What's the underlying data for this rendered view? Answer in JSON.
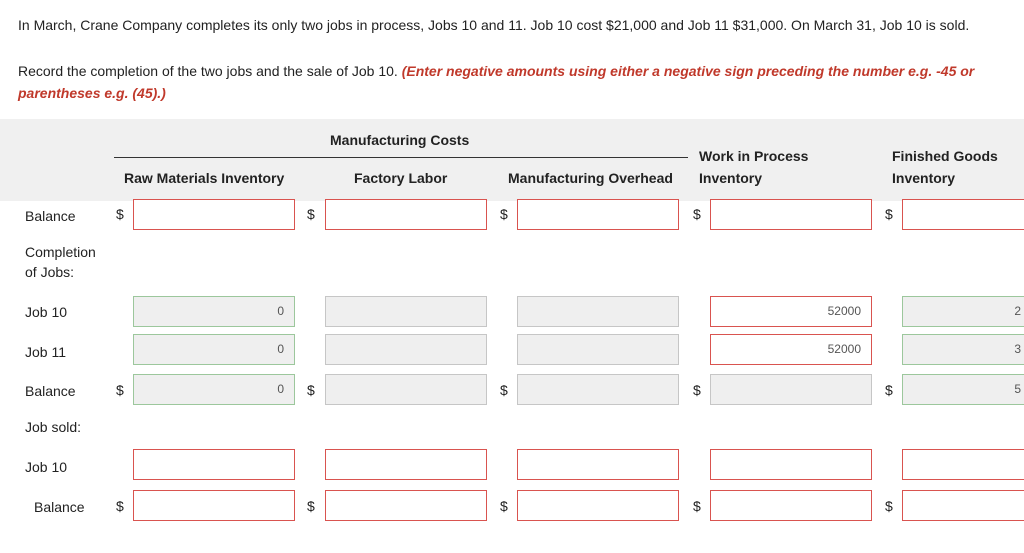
{
  "problem": {
    "statement": "In March, Crane Company completes its only two jobs in process, Jobs 10 and 11. Job 10 cost $21,000 and Job 11 $31,000. On March 31, Job 10 is sold.",
    "instruction": "Record the completion of the two jobs and the sale of Job 10. ",
    "note": "(Enter negative amounts using either a negative sign preceding the number e.g. -45 or parentheses e.g. (45).)"
  },
  "table": {
    "group_header": "Manufacturing Costs",
    "columns": {
      "raw_materials": "Raw Materials Inventory",
      "factory_labor": "Factory Labor",
      "mfg_overhead": "Manufacturing Overhead",
      "wip_line1": "Work in Process",
      "wip_line2": "Inventory",
      "fg_line1": "Finished Goods",
      "fg_line2": "Inventory"
    },
    "currency": "$",
    "rows": {
      "balance1": "Balance",
      "completion_line1": "Completion",
      "completion_line2": "of Jobs:",
      "job10": "Job 10",
      "job11": "Job 11",
      "balance2": "Balance",
      "job_sold": "Job sold:",
      "job10_sold": "Job 10",
      "balance3": "Balance"
    },
    "values": {
      "job10_raw": "0",
      "job10_wip": "52000",
      "job10_fg": "2",
      "job11_raw": "0",
      "job11_wip": "52000",
      "job11_fg": "3",
      "balance2_raw": "0",
      "balance2_fg": "5"
    }
  }
}
